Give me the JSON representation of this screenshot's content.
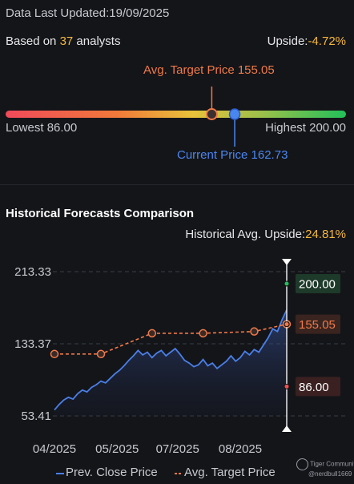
{
  "header": {
    "last_updated_label": "Data Last Updated:",
    "last_updated_value": "19/09/2025"
  },
  "summary": {
    "based_on_prefix": "Based on ",
    "analyst_count": "37",
    "based_on_suffix": " analysts",
    "upside_label": "Upside:",
    "upside_value": "-4.72%"
  },
  "price_range": {
    "avg_target_label": "Avg. Target Price 155.05",
    "current_label": "Current Price 162.73",
    "lowest_label": "Lowest 86.00",
    "highest_label": "Highest 200.00",
    "low": 86.0,
    "high": 200.0,
    "avg_target": 155.05,
    "current": 162.73,
    "colors": {
      "target": "#f07a48",
      "current": "#4a86f0"
    }
  },
  "historical": {
    "title": "Historical Forecasts Comparison",
    "avg_upside_label": "Historical Avg. Upside:",
    "avg_upside_value": "24.81%"
  },
  "legend": {
    "close_label": "Prev. Close Price",
    "target_label": "Avg. Target Price"
  },
  "watermark": {
    "brand": "Tiger Community",
    "user": "@nerdbull1669"
  },
  "chart_data": {
    "type": "line",
    "x_ticks": [
      "04/2025",
      "05/2025",
      "07/2025",
      "08/2025"
    ],
    "y_ticks": [
      213.33,
      133.37,
      53.41
    ],
    "ylim": [
      53.41,
      213.33
    ],
    "series": [
      {
        "name": "Prev. Close Price",
        "color": "#4a7fe8",
        "x": [
          0,
          2,
          4,
          6,
          8,
          10,
          12,
          14,
          16,
          18,
          20,
          22,
          24,
          26,
          28,
          30,
          32,
          34,
          36,
          38,
          40,
          42,
          44,
          46,
          48,
          50,
          52,
          54,
          56,
          58,
          60,
          62,
          64,
          66,
          68,
          70,
          72,
          74,
          76,
          78,
          80,
          82,
          84,
          86,
          88,
          90,
          92,
          94,
          96,
          98,
          100
        ],
        "values": [
          60,
          66,
          71,
          74,
          72,
          78,
          82,
          80,
          85,
          88,
          92,
          90,
          95,
          100,
          104,
          109,
          115,
          120,
          126,
          121,
          124,
          118,
          123,
          126,
          120,
          124,
          128,
          122,
          115,
          112,
          108,
          110,
          116,
          109,
          112,
          106,
          110,
          114,
          120,
          114,
          118,
          125,
          121,
          127,
          124,
          132,
          140,
          150,
          147,
          160,
          171
        ]
      },
      {
        "name": "Avg. Target Price",
        "color": "#f07a48",
        "x": [
          0,
          20,
          42,
          64,
          86,
          100
        ],
        "values": [
          122,
          122,
          145,
          145,
          147,
          155.05
        ]
      }
    ],
    "markers": [
      {
        "label": "200.00",
        "value": 200.0,
        "color": "#22c05a"
      },
      {
        "label": "155.05",
        "value": 155.05,
        "color": "#f07a48"
      },
      {
        "label": "86.00",
        "value": 86.0,
        "color": "#f05050"
      }
    ],
    "grid": true,
    "legend_position": "bottom"
  }
}
